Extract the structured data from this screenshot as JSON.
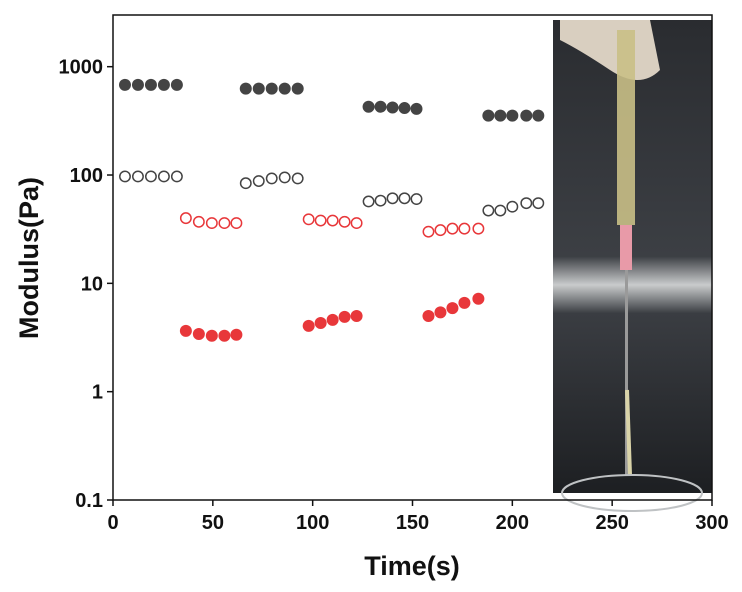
{
  "chart_data": {
    "type": "scatter",
    "xlabel": "Time(s)",
    "ylabel": "Modulus(Pa)",
    "xlim": [
      0,
      300
    ],
    "xticks": [
      0,
      50,
      100,
      150,
      200,
      250,
      300
    ],
    "ylim": [
      0.1,
      3000
    ],
    "yticks": [
      0.1,
      1,
      10,
      100,
      1000
    ],
    "ylog": true,
    "series": [
      {
        "color": "#444444",
        "marker": "filled",
        "x": [
          6,
          12.5,
          19,
          25.5,
          32,
          66.5,
          73,
          79.5,
          86,
          92.5,
          128,
          134,
          140,
          146,
          152,
          188,
          194,
          200,
          207,
          213
        ],
        "values": [
          680,
          680,
          680,
          680,
          680,
          627,
          627,
          627,
          627,
          627,
          427,
          427,
          420,
          415,
          408,
          353,
          353,
          353,
          353,
          353
        ]
      },
      {
        "color": "#444444",
        "marker": "open",
        "x": [
          6,
          12.5,
          19,
          25.5,
          32,
          66.5,
          73,
          79.5,
          86,
          92.5,
          128,
          134,
          140,
          146,
          152,
          188,
          194,
          200,
          207,
          213
        ],
        "values": [
          97,
          97,
          97,
          97,
          97,
          84,
          88,
          93,
          95,
          93,
          57,
          58,
          61,
          61,
          60,
          47,
          47,
          51,
          55,
          55
        ]
      },
      {
        "color": "#e8373a",
        "marker": "open",
        "x": [
          36.5,
          43,
          49.5,
          55.8,
          61.8,
          98,
          104,
          110,
          116,
          122,
          158,
          164,
          170,
          176,
          183
        ],
        "values": [
          40,
          37,
          36,
          36,
          36,
          39,
          38,
          38,
          37,
          36,
          30,
          31,
          32,
          32,
          32
        ]
      },
      {
        "color": "#e8373a",
        "marker": "filled",
        "x": [
          36.5,
          43,
          49.5,
          55.8,
          61.8,
          98,
          104,
          110,
          116,
          122,
          158,
          164,
          170,
          176,
          183
        ],
        "values": [
          3.64,
          3.41,
          3.28,
          3.28,
          3.35,
          4.05,
          4.3,
          4.6,
          4.9,
          5.0,
          5.0,
          5.4,
          5.9,
          6.6,
          7.2
        ]
      }
    ]
  }
}
